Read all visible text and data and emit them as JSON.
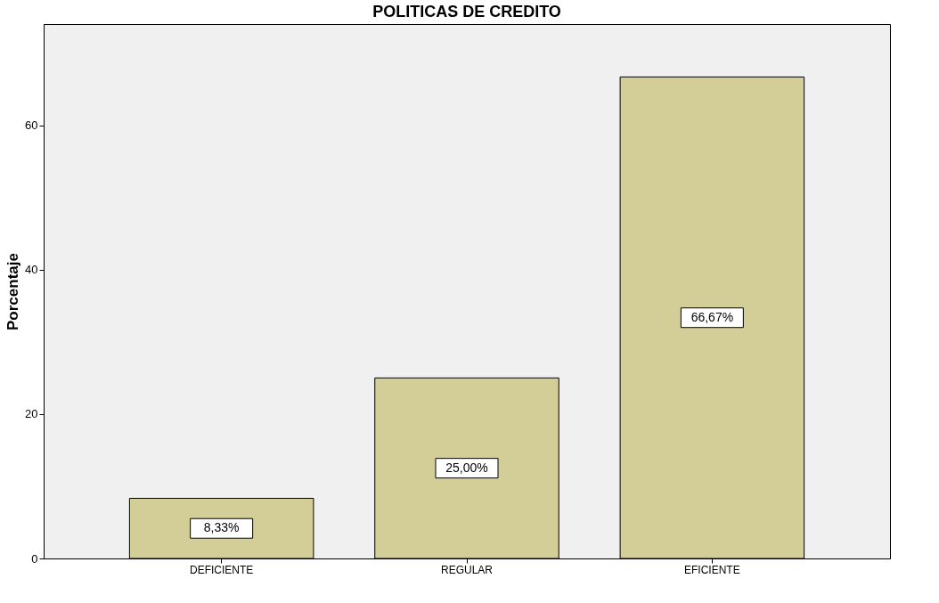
{
  "chart_data": {
    "type": "bar",
    "title": "POLITICAS DE CREDITO",
    "ylabel": "Porcentaje",
    "categories": [
      "DEFICIENTE",
      "REGULAR",
      "EFICIENTE"
    ],
    "values": [
      8.33,
      25.0,
      66.67
    ],
    "value_labels": [
      "8,33%",
      "25,00%",
      "66,67%"
    ],
    "color": "#d3ce98",
    "ylim": [
      0,
      74
    ],
    "yticks": [
      0,
      20,
      40,
      60
    ],
    "grid": false
  }
}
